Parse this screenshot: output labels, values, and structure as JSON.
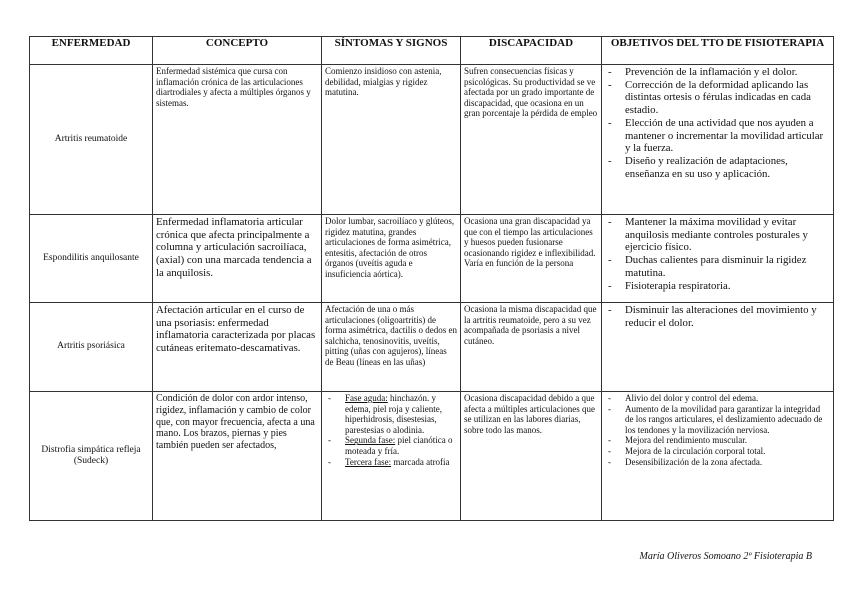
{
  "headers": [
    "ENFERMEDAD",
    "CONCEPTO",
    "SÍNTOMAS Y SIGNOS",
    "DISCAPACIDAD",
    "OBJETIVOS DEL TTO DE FISIOTERAPIA"
  ],
  "rows": [
    {
      "enfermedad": "Artritis reumatoide",
      "concepto": "Enfermedad sistémica que cursa con inflamación crónica de las articulaciones diartrodiales y afecta a múltiples órganos y sistemas.",
      "sintomas": "Comienzo insidioso con astenia, debilidad, mialgias y rigidez matutina.",
      "discapacidad": "Sufren consecuencias físicas y psicológicas. Su productividad se ve afectada por un grado importante de discapacidad, que ocasiona en un gran porcentaje la pérdida de empleo",
      "objetivos": [
        "Prevención de la inflamación y el dolor.",
        "Corrección de la deformidad aplicando las distintas ortesis o férulas indicadas en cada estadio.",
        "Elección de una actividad que nos ayuden a mantener o incrementar la movilidad articular y la fuerza.",
        "Diseño y realización de adaptaciones, enseñanza en su uso y aplicación."
      ]
    },
    {
      "enfermedad": "Espondilitis anquilosante",
      "concepto": "Enfermedad inflamatoria articular crónica que afecta principalmente a columna y articulación sacroilíaca, (axial) con una marcada tendencia a la anquilosis.",
      "sintomas": "Dolor lumbar, sacroilíaco y glúteos, rigidez matutina, grandes articulaciones de forma asimétrica, entesitis, afectación de otros órganos (uveítis aguda e insuficiencia aórtica).",
      "discapacidad": "Ocasiona una gran discapacidad ya que con el tiempo las articulaciones y huesos pueden fusionarse ocasionando rigidez e inflexibilidad. Varía en función de la persona",
      "objetivos": [
        "Mantener la máxima movilidad y evitar anquilosis mediante controles posturales y ejercicio físico.",
        "Duchas calientes para disminuir la rigidez matutina.",
        "Fisioterapia respiratoria."
      ]
    },
    {
      "enfermedad": "Artritis psoriásica",
      "concepto": "Afectación articular en el curso de una psoriasis: enfermedad inflamatoria caracterizada por placas cutáneas eritemato-descamativas.",
      "sintomas": "Afectación de una o más articulaciones (oligoartritis) de forma asimétrica, dactilis o dedos en salchicha, tenosinovitis, uveítis, pitting (uñas con agujeros), líneas de Beau (líneas en las uñas)",
      "discapacidad": "Ocasiona la misma discapacidad que la artritis reumatoide, pero a su vez acompañada de psoriasis a nivel cutáneo.",
      "objetivos": [
        "Disminuir las alteraciones del movimiento y reducir el dolor."
      ]
    },
    {
      "enfermedad": "Distrofia simpática refleja (Sudeck)",
      "concepto": "Condición de dolor con ardor intenso, rigidez, inflamación y cambio de color que, con mayor frecuencia, afecta a una mano. Los brazos, piernas y pies también pueden ser afectados,",
      "sintomas_fases": [
        {
          "label": "Fase aguda:",
          "text": " hinchazón. y edema, piel roja y caliente, hiperhidrosis, disestesias, parestesias o alodinia."
        },
        {
          "label": "Segunda fase:",
          "text": " piel cianótica o moteada y fría."
        },
        {
          "label": "Tercera fase:",
          "text": " marcada atrofia"
        }
      ],
      "discapacidad": "Ocasiona discapacidad debido a que afecta a múltiples articulaciones que se utilizan en las labores diarias, sobre todo las manos.",
      "objetivos": [
        "Alivio del dolor y control del edema.",
        "Aumento de la movilidad para garantizar la integridad de los rangos articulares, el deslizamiento adecuado de los tendones y la movilización nerviosa.",
        "Mejora del rendimiento muscular.",
        "Mejora de la circulación corporal total.",
        "Desensibilización de la zona afectada."
      ]
    }
  ],
  "footer": "María Oliveros Somoano 2º Fisioterapia B"
}
